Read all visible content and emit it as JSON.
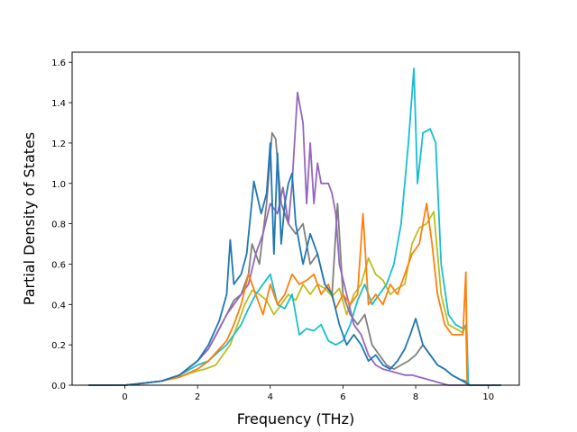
{
  "chart_data": {
    "type": "line",
    "xlabel": "Frequency (THz)",
    "ylabel": "Partial Density of States",
    "xlim": [
      -1.45,
      10.85
    ],
    "ylim": [
      0.0,
      1.65
    ],
    "x_ticks": [
      "0",
      "2",
      "4",
      "6",
      "8",
      "10"
    ],
    "x_tick_values": [
      0,
      2,
      4,
      6,
      8,
      10
    ],
    "y_ticks": [
      "0.0",
      "0.2",
      "0.4",
      "0.6",
      "0.8",
      "1.0",
      "1.2",
      "1.4",
      "1.6"
    ],
    "y_tick_values": [
      0.0,
      0.2,
      0.4,
      0.6,
      0.8,
      1.0,
      1.2,
      1.4,
      1.6
    ],
    "grid": false,
    "series": [
      {
        "color": "#bcbd22",
        "x": [
          -1.0,
          0.0,
          0.5,
          1.0,
          1.5,
          1.8,
          2.0,
          2.2,
          2.5,
          2.7,
          2.9,
          3.1,
          3.3,
          3.5,
          3.7,
          3.9,
          4.1,
          4.3,
          4.5,
          4.7,
          4.9,
          5.1,
          5.3,
          5.5,
          5.7,
          5.9,
          6.1,
          6.3,
          6.5,
          6.7,
          6.9,
          7.1,
          7.3,
          7.5,
          7.7,
          7.9,
          8.1,
          8.3,
          8.5,
          8.7,
          8.9,
          9.1,
          9.3,
          9.38,
          9.42,
          9.5,
          10.35
        ],
        "y": [
          0.0,
          0.0,
          0.01,
          0.02,
          0.04,
          0.06,
          0.07,
          0.08,
          0.1,
          0.15,
          0.2,
          0.3,
          0.4,
          0.47,
          0.45,
          0.42,
          0.35,
          0.4,
          0.45,
          0.42,
          0.5,
          0.45,
          0.5,
          0.48,
          0.44,
          0.48,
          0.35,
          0.45,
          0.5,
          0.63,
          0.55,
          0.52,
          0.45,
          0.48,
          0.5,
          0.7,
          0.78,
          0.8,
          0.86,
          0.45,
          0.3,
          0.28,
          0.26,
          0.3,
          0.0,
          0.0,
          0.0
        ]
      },
      {
        "color": "#17becf",
        "x": [
          -1.0,
          0.0,
          0.5,
          1.0,
          1.5,
          2.0,
          2.3,
          2.6,
          2.8,
          3.0,
          3.2,
          3.4,
          3.6,
          3.8,
          4.0,
          4.2,
          4.4,
          4.6,
          4.8,
          5.0,
          5.2,
          5.4,
          5.6,
          5.8,
          6.0,
          6.2,
          6.4,
          6.6,
          6.8,
          7.0,
          7.2,
          7.4,
          7.6,
          7.8,
          7.95,
          8.05,
          8.2,
          8.4,
          8.55,
          8.7,
          8.9,
          9.1,
          9.3,
          9.4,
          9.45,
          9.55,
          10.35
        ],
        "y": [
          0.0,
          0.0,
          0.01,
          0.02,
          0.05,
          0.1,
          0.12,
          0.17,
          0.2,
          0.25,
          0.3,
          0.38,
          0.45,
          0.5,
          0.55,
          0.4,
          0.38,
          0.45,
          0.25,
          0.28,
          0.27,
          0.3,
          0.22,
          0.2,
          0.22,
          0.3,
          0.42,
          0.5,
          0.4,
          0.45,
          0.5,
          0.6,
          0.8,
          1.2,
          1.57,
          1.0,
          1.25,
          1.27,
          1.2,
          0.6,
          0.35,
          0.3,
          0.28,
          0.3,
          0.0,
          0.0,
          0.0
        ]
      },
      {
        "color": "#7f7f7f",
        "x": [
          -1.0,
          0.0,
          0.5,
          1.0,
          1.5,
          2.0,
          2.3,
          2.6,
          2.8,
          3.0,
          3.2,
          3.4,
          3.5,
          3.7,
          3.9,
          4.05,
          4.15,
          4.3,
          4.5,
          4.7,
          4.9,
          5.1,
          5.3,
          5.5,
          5.7,
          5.85,
          6.0,
          6.2,
          6.4,
          6.6,
          6.8,
          7.0,
          7.2,
          7.4,
          7.6,
          7.8,
          8.0,
          8.2,
          8.4,
          8.6,
          8.8,
          9.0,
          9.2,
          9.38,
          9.45,
          9.55,
          10.35
        ],
        "y": [
          0.0,
          0.0,
          0.01,
          0.02,
          0.05,
          0.12,
          0.18,
          0.28,
          0.35,
          0.42,
          0.45,
          0.55,
          0.7,
          0.6,
          0.9,
          1.25,
          1.22,
          0.9,
          0.8,
          0.75,
          0.8,
          0.6,
          0.65,
          0.5,
          0.45,
          0.9,
          0.45,
          0.35,
          0.3,
          0.35,
          0.2,
          0.15,
          0.1,
          0.08,
          0.1,
          0.12,
          0.15,
          0.2,
          0.15,
          0.1,
          0.08,
          0.05,
          0.03,
          0.02,
          0.0,
          0.0,
          0.0
        ]
      },
      {
        "color": "#9467bd",
        "x": [
          -1.0,
          0.0,
          0.5,
          1.0,
          1.5,
          2.0,
          2.3,
          2.6,
          2.8,
          3.0,
          3.2,
          3.4,
          3.6,
          3.8,
          4.0,
          4.2,
          4.35,
          4.5,
          4.6,
          4.75,
          4.9,
          5.0,
          5.1,
          5.2,
          5.3,
          5.4,
          5.5,
          5.6,
          5.7,
          5.8,
          5.9,
          6.1,
          6.3,
          6.5,
          6.7,
          6.9,
          7.1,
          7.3,
          7.5,
          7.7,
          7.9,
          8.1,
          8.3,
          8.5,
          8.7,
          8.9,
          9.1,
          9.3,
          9.5,
          10.35
        ],
        "y": [
          0.0,
          0.0,
          0.01,
          0.02,
          0.05,
          0.12,
          0.18,
          0.28,
          0.35,
          0.4,
          0.45,
          0.5,
          0.65,
          0.75,
          0.9,
          0.85,
          0.98,
          0.8,
          1.0,
          1.45,
          1.3,
          0.9,
          1.2,
          0.9,
          1.1,
          1.0,
          1.0,
          1.0,
          0.95,
          0.85,
          0.6,
          0.45,
          0.3,
          0.25,
          0.15,
          0.1,
          0.08,
          0.07,
          0.06,
          0.05,
          0.05,
          0.04,
          0.03,
          0.02,
          0.01,
          0.0,
          0.0,
          0.0,
          0.0,
          0.0
        ]
      },
      {
        "color": "#ff7f0e",
        "x": [
          -1.0,
          0.0,
          0.5,
          1.0,
          1.5,
          2.0,
          2.3,
          2.6,
          2.8,
          3.0,
          3.2,
          3.4,
          3.6,
          3.8,
          4.0,
          4.2,
          4.4,
          4.6,
          4.8,
          5.0,
          5.2,
          5.4,
          5.6,
          5.8,
          6.0,
          6.2,
          6.4,
          6.55,
          6.7,
          6.9,
          7.1,
          7.3,
          7.5,
          7.7,
          7.9,
          8.1,
          8.3,
          8.45,
          8.6,
          8.8,
          9.0,
          9.2,
          9.3,
          9.38,
          9.42,
          9.5,
          10.35
        ],
        "y": [
          0.0,
          0.0,
          0.01,
          0.02,
          0.04,
          0.08,
          0.12,
          0.18,
          0.22,
          0.3,
          0.4,
          0.55,
          0.45,
          0.35,
          0.5,
          0.4,
          0.45,
          0.55,
          0.5,
          0.52,
          0.55,
          0.45,
          0.5,
          0.38,
          0.45,
          0.4,
          0.45,
          0.85,
          0.4,
          0.45,
          0.4,
          0.5,
          0.45,
          0.55,
          0.65,
          0.7,
          0.9,
          0.7,
          0.45,
          0.3,
          0.25,
          0.25,
          0.25,
          0.56,
          0.0,
          0.0,
          0.0
        ]
      },
      {
        "color": "#1f77b4",
        "x": [
          -1.0,
          0.0,
          0.5,
          1.0,
          1.5,
          2.0,
          2.3,
          2.6,
          2.8,
          2.9,
          3.0,
          3.2,
          3.35,
          3.55,
          3.75,
          3.9,
          4.0,
          4.1,
          4.2,
          4.3,
          4.4,
          4.5,
          4.6,
          4.7,
          4.9,
          5.1,
          5.3,
          5.5,
          5.7,
          5.9,
          6.1,
          6.3,
          6.5,
          6.7,
          6.9,
          7.1,
          7.3,
          7.5,
          7.7,
          7.85,
          8.0,
          8.2,
          8.4,
          8.6,
          8.8,
          9.0,
          9.2,
          9.4,
          9.5,
          10.35
        ],
        "y": [
          0.0,
          0.0,
          0.01,
          0.02,
          0.05,
          0.12,
          0.2,
          0.32,
          0.45,
          0.72,
          0.5,
          0.55,
          0.65,
          1.01,
          0.85,
          0.95,
          1.2,
          0.65,
          1.15,
          0.7,
          0.9,
          1.0,
          1.05,
          0.8,
          0.6,
          0.75,
          0.65,
          0.5,
          0.45,
          0.3,
          0.2,
          0.25,
          0.2,
          0.12,
          0.15,
          0.1,
          0.08,
          0.12,
          0.18,
          0.25,
          0.33,
          0.2,
          0.15,
          0.1,
          0.08,
          0.05,
          0.03,
          0.01,
          0.0,
          0.0
        ]
      }
    ]
  }
}
